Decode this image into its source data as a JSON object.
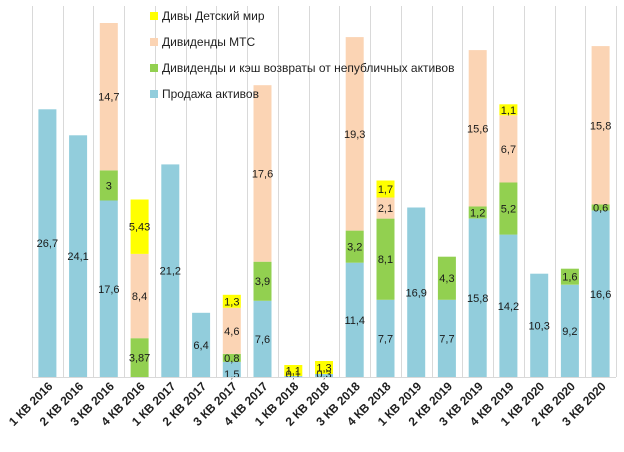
{
  "chart_data": {
    "type": "bar",
    "stacked": true,
    "grid": true,
    "legend_position": "top-inside",
    "categories": [
      "1 КВ 2016",
      "2 КВ 2016",
      "3 КВ 2016",
      "4 КВ 2016",
      "1 КВ 2017",
      "2 КВ 2017",
      "3 КВ 2017",
      "4 КВ 2017",
      "1 КВ 2018",
      "2 КВ 2018",
      "3 КВ 2018",
      "4 КВ 2018",
      "1 КВ 2019",
      "2 КВ 2019",
      "3 КВ 2019",
      "4 КВ 2019",
      "1 КВ 2020",
      "2 КВ 2020",
      "3 КВ 2020"
    ],
    "series": [
      {
        "name": "Продажа активов",
        "color": "#92CDDC",
        "values": [
          26.7,
          24.1,
          17.6,
          null,
          21.2,
          6.4,
          1.5,
          7.6,
          0.1,
          0.3,
          11.4,
          7.7,
          16.9,
          7.7,
          15.8,
          14.2,
          10.3,
          9.2,
          16.6
        ],
        "labels": [
          "26,7",
          "24,1",
          "17,6",
          "",
          "21,2",
          "6,4",
          "1,5",
          "7,6",
          "0,1",
          "0,3",
          "11,4",
          "7,7",
          "16,9",
          "7,7",
          "15,8",
          "14,2",
          "10,3",
          "9,2",
          "16,6"
        ]
      },
      {
        "name": "Дивиденды и кэш возвраты от непубличных активов",
        "color": "#92D050",
        "values": [
          null,
          null,
          3,
          3.87,
          null,
          null,
          0.8,
          3.9,
          null,
          null,
          3.2,
          8.1,
          null,
          4.3,
          1.2,
          5.2,
          null,
          1.6,
          0.6
        ],
        "labels": [
          "",
          "",
          "3",
          "3,87",
          "",
          "",
          "0,8",
          "3,9",
          "",
          "",
          "3,2",
          "8,1",
          "",
          "4,3",
          "1,2",
          "5,2",
          "",
          "1,6",
          "0,6"
        ]
      },
      {
        "name": "Дивиденды МТС",
        "color": "#FBD4B4",
        "values": [
          null,
          null,
          14.7,
          8.4,
          null,
          null,
          4.6,
          17.6,
          null,
          null,
          19.3,
          2.1,
          null,
          null,
          15.6,
          6.7,
          null,
          null,
          15.8
        ],
        "labels": [
          "",
          "",
          "14,7",
          "8,4",
          "",
          "",
          "4,6",
          "17,6",
          "",
          "",
          "19,3",
          "2,1",
          "",
          "",
          "15,6",
          "6,7",
          "",
          "",
          "15,8"
        ]
      },
      {
        "name": "Дивы Детский мир",
        "color": "#FFFF00",
        "values": [
          null,
          null,
          null,
          5.43,
          null,
          null,
          1.3,
          null,
          1.1,
          1.3,
          null,
          1.7,
          null,
          null,
          null,
          1.1,
          null,
          null,
          null
        ],
        "labels": [
          "",
          "",
          "",
          "5,43",
          "",
          "",
          "1,3",
          "",
          "1,1",
          "1,3",
          "",
          "1,7",
          "",
          "",
          "",
          "1,1",
          "",
          "",
          ""
        ]
      }
    ],
    "legend_order": [
      "Дивы Детский мир",
      "Дивиденды МТС",
      "Дивиденды и кэш возвраты от непубличных активов",
      "Продажа активов"
    ],
    "ylim": [
      0,
      37
    ]
  }
}
